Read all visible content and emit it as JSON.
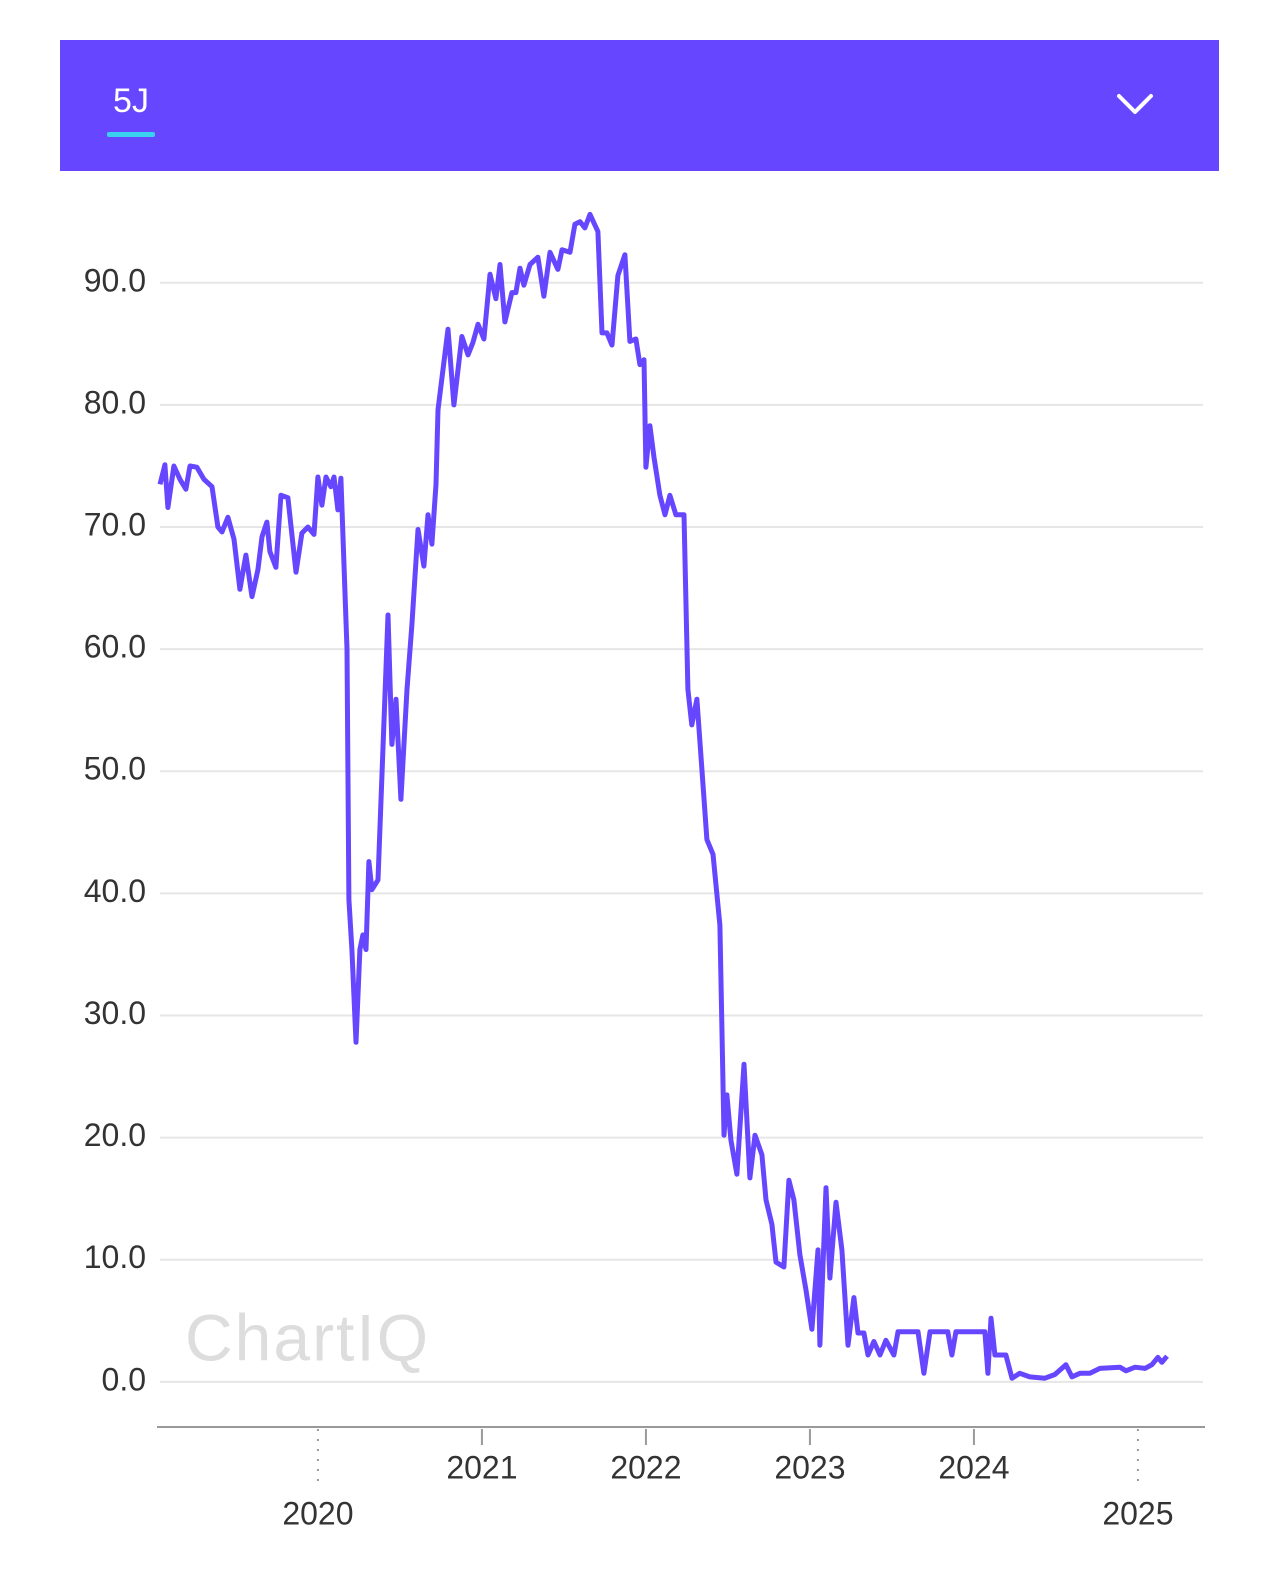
{
  "header": {
    "tab": "5J"
  },
  "chart_data": {
    "type": "line",
    "watermark": "ChartIQ",
    "xlim": [
      2019.037,
      2025.409
    ],
    "xticks": [
      2020,
      2021,
      2022,
      2023,
      2024,
      2025
    ],
    "ylim": [
      -3.7,
      97.6
    ],
    "yticks": [
      {
        "value": 0,
        "label": "0.0"
      },
      {
        "value": 10,
        "label": "10.0"
      },
      {
        "value": 20,
        "label": "20.0"
      },
      {
        "value": 30,
        "label": "30.0"
      },
      {
        "value": 40,
        "label": "40.0"
      },
      {
        "value": 50,
        "label": "50.0"
      },
      {
        "value": 60,
        "label": "60.0"
      },
      {
        "value": 70,
        "label": "70.0"
      },
      {
        "value": 80,
        "label": "80.0"
      },
      {
        "value": 90,
        "label": "90.0"
      }
    ],
    "grid": true,
    "series": [
      {
        "color": "#6647ff",
        "x": [
          2019.037,
          2019.067,
          2019.085,
          2019.122,
          2019.159,
          2019.195,
          2019.22,
          2019.262,
          2019.305,
          2019.354,
          2019.39,
          2019.415,
          2019.451,
          2019.488,
          2019.524,
          2019.561,
          2019.598,
          2019.634,
          2019.659,
          2019.689,
          2019.707,
          2019.744,
          2019.774,
          2019.817,
          2019.866,
          2019.902,
          2019.939,
          2019.976,
          2020.0,
          2020.024,
          2020.049,
          2020.079,
          2020.098,
          2020.122,
          2020.14,
          2020.177,
          2020.189,
          2020.207,
          2020.232,
          2020.256,
          2020.274,
          2020.293,
          2020.311,
          2020.329,
          2020.366,
          2020.427,
          2020.451,
          2020.476,
          2020.506,
          2020.543,
          2020.573,
          2020.61,
          2020.646,
          2020.671,
          2020.695,
          2020.72,
          2020.732,
          2020.793,
          2020.829,
          2020.878,
          2020.915,
          2020.945,
          2020.976,
          2021.012,
          2021.049,
          2021.085,
          2021.11,
          2021.14,
          2021.183,
          2021.207,
          2021.232,
          2021.256,
          2021.293,
          2021.341,
          2021.378,
          2021.415,
          2021.463,
          2021.488,
          2021.537,
          2021.567,
          2021.598,
          2021.628,
          2021.659,
          2021.707,
          2021.732,
          2021.762,
          2021.793,
          2021.829,
          2021.872,
          2021.902,
          2021.939,
          2021.963,
          2021.988,
          2022.0,
          2022.024,
          2022.049,
          2022.085,
          2022.116,
          2022.146,
          2022.183,
          2022.232,
          2022.256,
          2022.28,
          2022.311,
          2022.372,
          2022.409,
          2022.451,
          2022.476,
          2022.494,
          2022.518,
          2022.555,
          2022.598,
          2022.634,
          2022.665,
          2022.707,
          2022.732,
          2022.768,
          2022.793,
          2022.841,
          2022.872,
          2022.902,
          2022.939,
          2022.976,
          2023.012,
          2023.049,
          2023.061,
          2023.098,
          2023.122,
          2023.159,
          2023.195,
          2023.232,
          2023.268,
          2023.293,
          2023.329,
          2023.354,
          2023.39,
          2023.427,
          2023.463,
          2023.512,
          2023.537,
          2023.659,
          2023.695,
          2023.732,
          2023.841,
          2023.866,
          2023.89,
          2024.067,
          2024.085,
          2024.104,
          2024.128,
          2024.195,
          2024.232,
          2024.28,
          2024.341,
          2024.433,
          2024.494,
          2024.561,
          2024.598,
          2024.646,
          2024.707,
          2024.768,
          2024.89,
          2024.927,
          2024.982,
          2025.043,
          2025.085,
          2025.122,
          2025.146,
          2025.177
        ],
        "values": [
          73.5,
          75.1,
          71.6,
          75,
          73.9,
          73.1,
          75,
          74.9,
          73.9,
          73.3,
          70,
          69.6,
          70.8,
          69,
          64.9,
          67.7,
          64.3,
          66.5,
          69.2,
          70.4,
          68,
          66.7,
          72.6,
          72.4,
          66.3,
          69.5,
          70,
          69.4,
          74.1,
          71.8,
          74.1,
          73.3,
          74.1,
          71.4,
          74,
          60,
          39.5,
          35.4,
          27.8,
          35.4,
          36.6,
          35.4,
          42.6,
          40.3,
          41.1,
          62.8,
          52.2,
          55.9,
          47.7,
          56.7,
          62,
          69.8,
          66.8,
          71,
          68.6,
          73.5,
          79.6,
          86.2,
          80,
          85.6,
          84.1,
          85.1,
          86.6,
          85.4,
          90.7,
          88.7,
          91.5,
          86.8,
          89.2,
          89.2,
          91.2,
          89.8,
          91.5,
          92.1,
          88.9,
          92.5,
          91.1,
          92.7,
          92.5,
          94.8,
          95,
          94.5,
          95.6,
          94.2,
          85.9,
          85.9,
          84.9,
          90.6,
          92.3,
          85.2,
          85.4,
          83.3,
          83.7,
          74.9,
          78.3,
          75.7,
          72.6,
          71,
          72.6,
          71,
          71,
          56.7,
          53.8,
          55.9,
          44.4,
          43.2,
          37.4,
          20.2,
          23.5,
          19.8,
          17,
          26,
          16.7,
          20.2,
          18.6,
          14.9,
          12.9,
          9.8,
          9.4,
          16.5,
          14.9,
          10.4,
          7.5,
          4.3,
          10.8,
          3,
          15.9,
          8.5,
          14.7,
          10.8,
          3,
          6.9,
          4,
          4,
          2.2,
          3.3,
          2.2,
          3.4,
          2.2,
          4.1,
          4.1,
          0.7,
          4.1,
          4.1,
          2.2,
          4.1,
          4.1,
          0.7,
          5.2,
          2.2,
          2.2,
          0.3,
          0.7,
          0.4,
          0.3,
          0.6,
          1.4,
          0.4,
          0.7,
          0.7,
          1.1,
          1.2,
          0.9,
          1.2,
          1.1,
          1.4,
          2,
          1.6,
          2.1
        ]
      }
    ]
  }
}
